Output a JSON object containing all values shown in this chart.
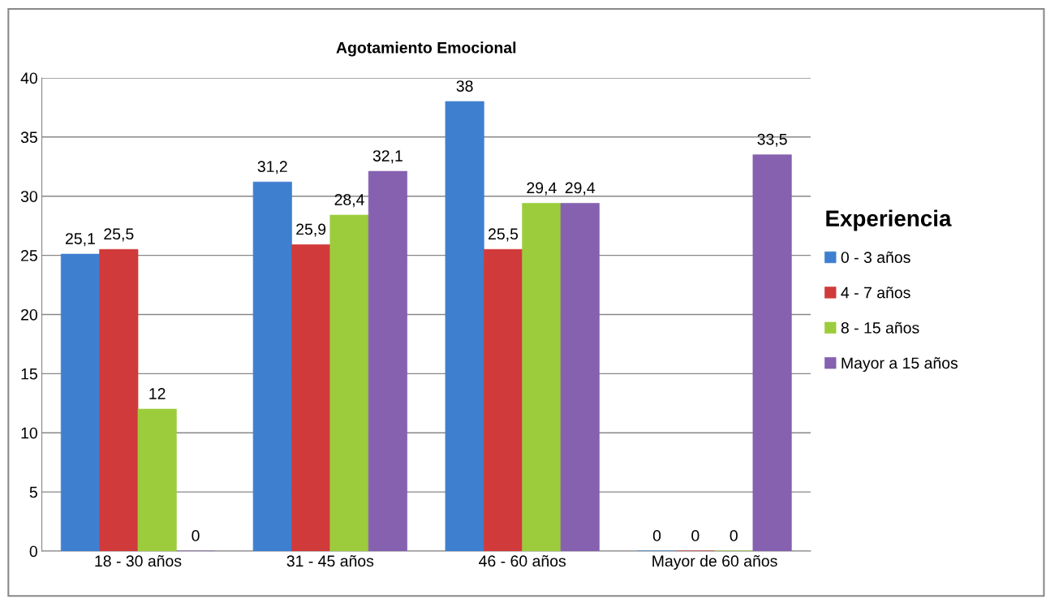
{
  "chart_data": {
    "type": "bar",
    "title": "Agotamiento Emocional",
    "legend_title": "Experiencia",
    "categories": [
      "18 - 30 años",
      "31 - 45 años",
      "46 - 60 años",
      "Mayor de 60 años"
    ],
    "series": [
      {
        "name": "0 - 3 años",
        "color": "#3f7fd0",
        "values": [
          25.1,
          31.2,
          38,
          0
        ],
        "value_labels": [
          "25,1",
          "31,2",
          "38",
          "0"
        ]
      },
      {
        "name": "4 - 7 años",
        "color": "#d03a3a",
        "values": [
          25.5,
          25.9,
          25.5,
          0
        ],
        "value_labels": [
          "25,5",
          "25,9",
          "25,5",
          "0"
        ]
      },
      {
        "name": "8 - 15 años",
        "color": "#9ccc3c",
        "values": [
          12,
          28.4,
          29.4,
          0
        ],
        "value_labels": [
          "12",
          "28,4",
          "29,4",
          "0"
        ]
      },
      {
        "name": "Mayor a 15 años",
        "color": "#8561b0",
        "values": [
          0,
          32.1,
          29.4,
          33.5
        ],
        "value_labels": [
          "0",
          "32,1",
          "29,4",
          "33,5"
        ]
      }
    ],
    "ylim": [
      0,
      40
    ],
    "yticks": [
      0,
      5,
      10,
      15,
      20,
      25,
      30,
      35,
      40
    ],
    "grid": "y",
    "legend": "right"
  }
}
